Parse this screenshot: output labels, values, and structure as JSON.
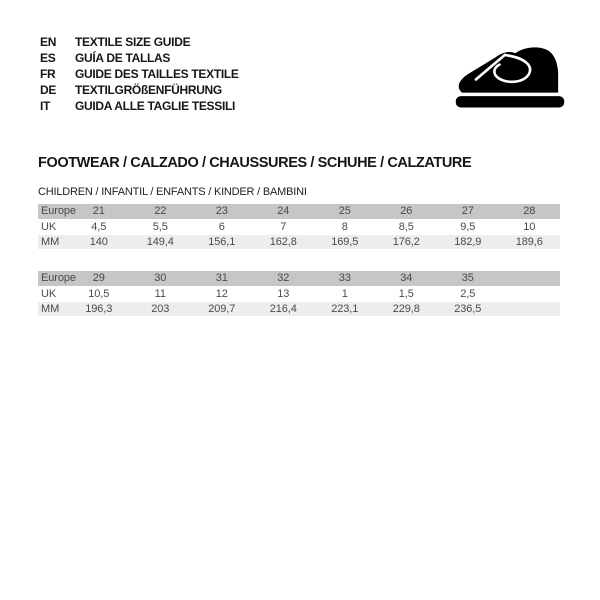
{
  "languages": [
    {
      "code": "EN",
      "label": "TEXTILE SIZE GUIDE"
    },
    {
      "code": "ES",
      "label": "GUÍA DE TALLAS"
    },
    {
      "code": "FR",
      "label": "GUIDE DES TAILLES TEXTILE"
    },
    {
      "code": "DE",
      "label": "TEXTILGRÖßENFÜHRUNG"
    },
    {
      "code": "IT",
      "label": "GUIDA ALLE TAGLIE TESSILI"
    }
  ],
  "icon": {
    "name": "children-shoe-icon",
    "color": "#000000"
  },
  "section": {
    "title": "FOOTWEAR / CALZADO / CHAUSSURES / SCHUHE / CALZATURE",
    "subtitle": "CHILDREN / INFANTIL / ENFANTS / KINDER / BAMBINI"
  },
  "tables": [
    {
      "type": "table",
      "rows": [
        {
          "label": "Europe",
          "values": [
            "21",
            "22",
            "23",
            "24",
            "25",
            "26",
            "27",
            "28"
          ]
        },
        {
          "label": "UK",
          "values": [
            "4,5",
            "5,5",
            "6",
            "7",
            "8",
            "8,5",
            "9,5",
            "10"
          ]
        },
        {
          "label": "MM",
          "values": [
            "140",
            "149,4",
            "156,1",
            "162,8",
            "169,5",
            "176,2",
            "182,9",
            "189,6"
          ]
        }
      ]
    },
    {
      "type": "table",
      "rows": [
        {
          "label": "Europe",
          "values": [
            "29",
            "30",
            "31",
            "32",
            "33",
            "34",
            "35",
            ""
          ]
        },
        {
          "label": "UK",
          "values": [
            "10,5",
            "11",
            "12",
            "13",
            "1",
            "1,5",
            "2,5",
            ""
          ]
        },
        {
          "label": "MM",
          "values": [
            "196,3",
            "203",
            "209,7",
            "216,4",
            "223,1",
            "229,8",
            "236,5",
            ""
          ]
        }
      ]
    }
  ],
  "colors": {
    "header_row_bg": "#c6c6c6",
    "stripe_row_bg": "#ededed",
    "table_text": "#4a4a4a",
    "ink": "#161616"
  }
}
